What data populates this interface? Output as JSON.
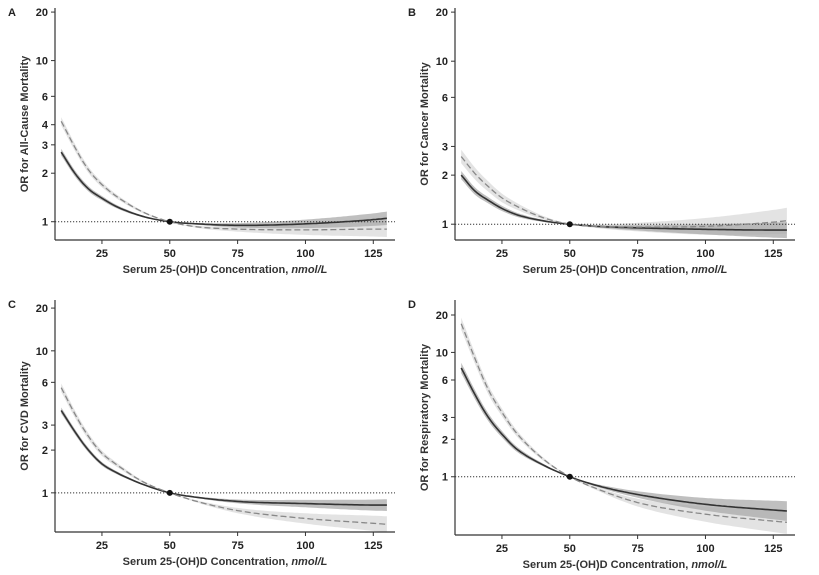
{
  "chart_data": [
    {
      "type": "line",
      "panel_letter": "A",
      "ylabel": "OR for All-Cause Mortality",
      "xlabel": "Serum 25-(OH)D Concentration,",
      "xlabel_unit": "nmol/L",
      "xlim": [
        7.7,
        133
      ],
      "ylim": [
        0.77,
        21.2
      ],
      "yscale": "log",
      "xticks": [
        25,
        50,
        75,
        100,
        125
      ],
      "yticks": [
        1,
        2,
        3,
        4,
        6,
        10,
        20
      ],
      "reference_line": 1,
      "reference_point": [
        50,
        1
      ],
      "x": [
        10,
        15,
        20,
        25,
        30,
        40,
        50,
        60,
        75,
        100,
        125,
        130
      ],
      "series": [
        {
          "name": "solid",
          "style": "solid",
          "ci_spread": 0.05,
          "values": [
            2.7,
            2.0,
            1.6,
            1.4,
            1.25,
            1.08,
            1.0,
            0.97,
            0.95,
            0.97,
            1.03,
            1.05
          ]
        },
        {
          "name": "dashed",
          "style": "dashed",
          "ci_spread": 0.06,
          "values": [
            4.2,
            2.9,
            2.1,
            1.7,
            1.45,
            1.15,
            1.0,
            0.93,
            0.9,
            0.89,
            0.9,
            0.9
          ]
        }
      ]
    },
    {
      "type": "line",
      "panel_letter": "B",
      "ylabel": "OR for Cancer Mortality",
      "xlabel": "Serum 25-(OH)D Concentration,",
      "xlabel_unit": "nmol/L",
      "xlim": [
        7.7,
        133
      ],
      "ylim": [
        0.8,
        21.2
      ],
      "yscale": "log",
      "xticks": [
        25,
        50,
        75,
        100,
        125
      ],
      "yticks": [
        1,
        2,
        3,
        6,
        10,
        20
      ],
      "reference_line": 1,
      "reference_point": [
        50,
        1
      ],
      "x": [
        10,
        15,
        20,
        25,
        30,
        40,
        50,
        60,
        75,
        100,
        125,
        130
      ],
      "series": [
        {
          "name": "solid",
          "style": "solid",
          "ci_spread": 0.06,
          "values": [
            2.0,
            1.6,
            1.4,
            1.25,
            1.15,
            1.05,
            1.0,
            0.97,
            0.95,
            0.93,
            0.92,
            0.92
          ]
        },
        {
          "name": "dashed",
          "style": "dashed",
          "ci_spread": 0.1,
          "values": [
            2.6,
            2.05,
            1.7,
            1.45,
            1.3,
            1.1,
            1.0,
            0.97,
            0.96,
            0.97,
            1.03,
            1.05
          ]
        }
      ]
    },
    {
      "type": "line",
      "panel_letter": "C",
      "ylabel": "OR for CVD Mortality",
      "xlabel": "Serum 25-(OH)D Concentration,",
      "xlabel_unit": "nmol/L",
      "xlim": [
        7.7,
        133
      ],
      "ylim": [
        0.53,
        22.8
      ],
      "yscale": "log",
      "xticks": [
        25,
        50,
        75,
        100,
        125
      ],
      "yticks": [
        1,
        2,
        3,
        6,
        10,
        20
      ],
      "reference_line": 1,
      "reference_point": [
        50,
        1
      ],
      "x": [
        10,
        15,
        20,
        25,
        30,
        40,
        50,
        60,
        75,
        100,
        125,
        130
      ],
      "series": [
        {
          "name": "solid",
          "style": "solid",
          "ci_spread": 0.05,
          "values": [
            3.8,
            2.7,
            2.0,
            1.6,
            1.4,
            1.15,
            1.0,
            0.93,
            0.87,
            0.84,
            0.82,
            0.82
          ]
        },
        {
          "name": "dashed",
          "style": "dashed",
          "ci_spread": 0.07,
          "values": [
            5.5,
            3.6,
            2.5,
            1.9,
            1.6,
            1.2,
            1.0,
            0.87,
            0.75,
            0.66,
            0.61,
            0.6
          ]
        }
      ]
    },
    {
      "type": "line",
      "panel_letter": "D",
      "ylabel": "OR for Respiratory Mortality",
      "xlabel": "Serum 25-(OH)D Concentration,",
      "xlabel_unit": "nmol/L",
      "xlim": [
        7.7,
        133
      ],
      "ylim": [
        0.34,
        26.4
      ],
      "yscale": "log",
      "xticks": [
        25,
        50,
        75,
        100,
        125
      ],
      "yticks": [
        1,
        2,
        3,
        6,
        10,
        20
      ],
      "reference_line": 1,
      "reference_point": [
        50,
        1
      ],
      "x": [
        10,
        15,
        20,
        25,
        30,
        40,
        50,
        60,
        75,
        100,
        125,
        130
      ],
      "series": [
        {
          "name": "solid",
          "style": "solid",
          "ci_spread": 0.1,
          "values": [
            7.5,
            4.6,
            3.0,
            2.2,
            1.7,
            1.25,
            1.0,
            0.85,
            0.72,
            0.6,
            0.54,
            0.53
          ]
        },
        {
          "name": "dashed",
          "style": "dashed",
          "ci_spread": 0.12,
          "values": [
            17,
            9,
            5,
            3.3,
            2.3,
            1.4,
            1.0,
            0.8,
            0.62,
            0.5,
            0.44,
            0.43
          ]
        }
      ]
    }
  ]
}
